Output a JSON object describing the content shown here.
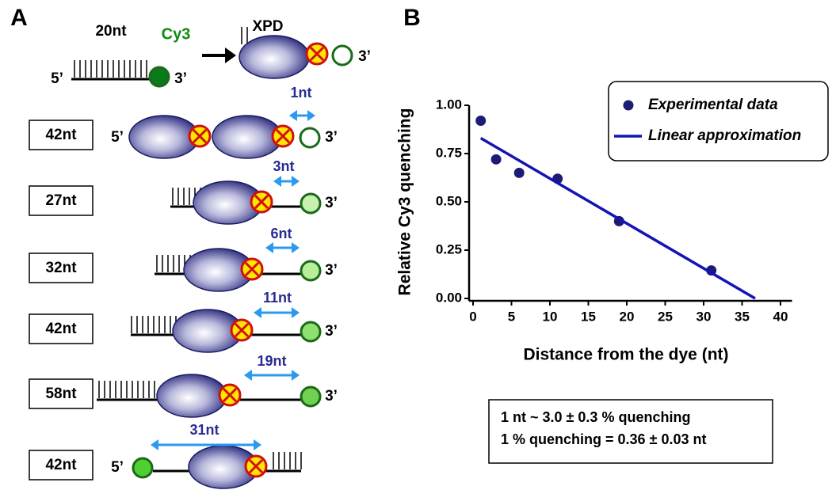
{
  "diagram": {
    "panel_label": "A",
    "top": {
      "length": "20nt",
      "dye": "Cy3",
      "five_prime": "5’",
      "three_prime": "3’",
      "protein": "XPD",
      "three_prime_after": "3’"
    },
    "rows": [
      {
        "length": "42nt",
        "distance": "1nt",
        "five_prime": "5’",
        "three_prime": "3’"
      },
      {
        "length": "27nt",
        "distance": "3nt",
        "three_prime": "3’"
      },
      {
        "length": "32nt",
        "distance": "6nt",
        "three_prime": "3’"
      },
      {
        "length": "42nt",
        "distance": "11nt",
        "three_prime": "3’"
      },
      {
        "length": "58nt",
        "distance": "19nt",
        "three_prime": "3’"
      },
      {
        "length": "42nt",
        "distance": "31nt",
        "five_prime": "5’"
      }
    ]
  },
  "chart_data": {
    "type": "scatter",
    "panel_label": "B",
    "x_label": "Distance from the dye (nt)",
    "y_label": "Relative Cy3 quenching",
    "series": [
      {
        "name": "Experimental data",
        "color": "#1c1c78",
        "x": [
          1,
          3,
          6,
          11,
          19,
          31
        ],
        "values": [
          0.92,
          0.72,
          0.65,
          0.62,
          0.4,
          0.145
        ]
      },
      {
        "name": "Linear approximation",
        "type": "line",
        "color": "#1414b4",
        "x": [
          1,
          36.7
        ],
        "values": [
          0.83,
          0
        ]
      }
    ],
    "xlim": [
      0,
      41.5
    ],
    "xticks": [
      0,
      5,
      10,
      15,
      20,
      25,
      30,
      35,
      40
    ],
    "ylim": [
      0,
      1.0
    ],
    "yticks": [
      {
        "value": 0,
        "label": "0.00"
      },
      {
        "value": 0.25,
        "label": "0.25"
      },
      {
        "value": 0.5,
        "label": "0.50"
      },
      {
        "value": 0.75,
        "label": "0.75"
      },
      {
        "value": 1.0,
        "label": "1.00"
      }
    ],
    "legend": "upper right",
    "annotations": [
      "1 nt ~ 3.0 ± 0.3 % quenching",
      "1 % quenching = 0.36 ± 0.03 nt"
    ]
  }
}
